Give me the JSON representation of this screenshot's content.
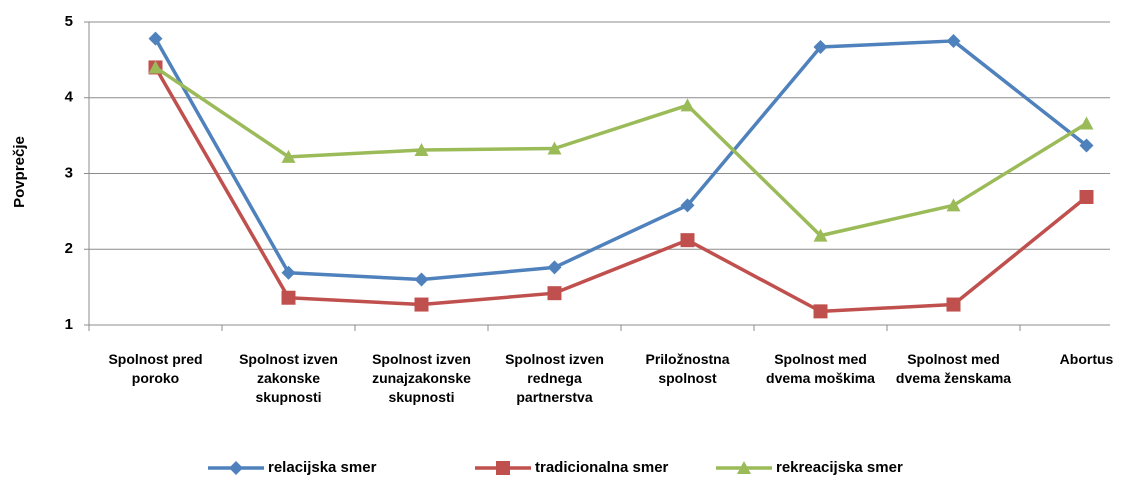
{
  "chart_data": {
    "type": "line",
    "y_label": "Povprečje",
    "categories": [
      "Spolnost pred poroko",
      "Spolnost izven zakonske skupnosti",
      "Spolnost izven zunajzakonske skupnosti",
      "Spolnost izven rednega partnerstva",
      "Priložnostna spolnost",
      "Spolnost med dvema moškima",
      "Spolnost med dvema ženskama",
      "Abortus"
    ],
    "series": [
      {
        "name": "relacijska smer",
        "color": "#4f81bd",
        "marker": "diamond",
        "values": [
          4.78,
          1.69,
          1.6,
          1.76,
          2.58,
          4.67,
          4.75,
          3.37
        ]
      },
      {
        "name": "tradicionalna smer",
        "color": "#c0504d",
        "marker": "square",
        "values": [
          4.4,
          1.36,
          1.27,
          1.42,
          2.12,
          1.18,
          1.27,
          2.69
        ]
      },
      {
        "name": "rekreacijska smer",
        "color": "#9bbb59",
        "marker": "triangle",
        "values": [
          4.4,
          3.22,
          3.31,
          3.33,
          3.9,
          2.18,
          2.58,
          3.66
        ]
      }
    ],
    "ylim": [
      1,
      5
    ],
    "yticks": [
      1,
      2,
      3,
      4,
      5
    ],
    "grid": true,
    "legend": "bottom"
  }
}
